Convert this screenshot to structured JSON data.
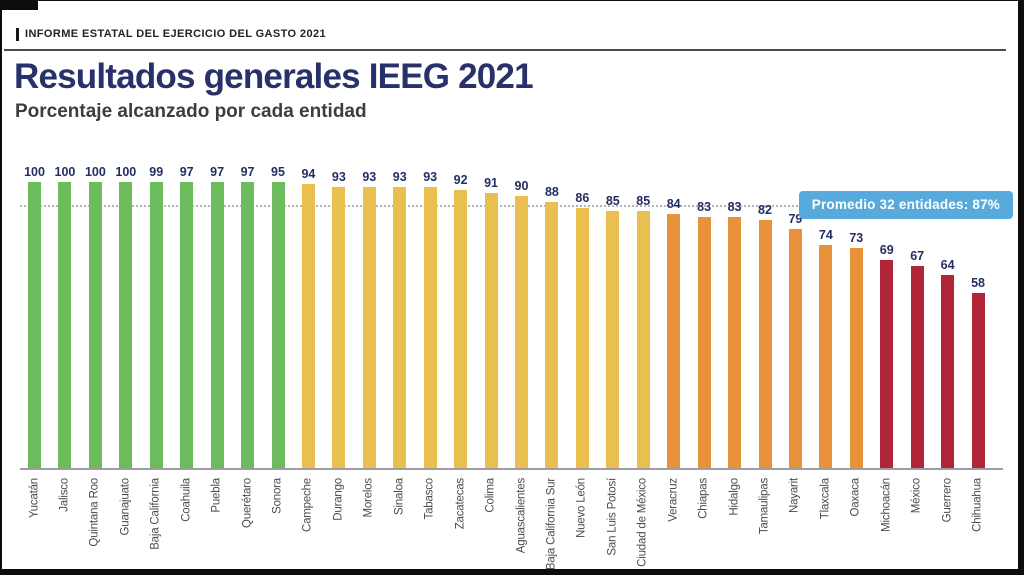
{
  "header": {
    "eyebrow": "INFORME ESTATAL DEL EJERCICIO DEL GASTO 2021"
  },
  "chart_data": {
    "type": "bar",
    "title": "Resultados generales IEEG 2021",
    "subtitle": "Porcentaje alcanzado por cada entidad",
    "xlabel": "",
    "ylabel": "",
    "ylim": [
      0,
      100
    ],
    "grid": false,
    "legend": "none",
    "average_line": {
      "value": 87,
      "label": "Promedio 32 entidades: 87%",
      "style": "dotted-gray"
    },
    "colors": {
      "green": "#6CBB5D",
      "yellow": "#E9C050",
      "orange": "#E8923C",
      "red": "#B02537",
      "badge_bg": "#58A9DC",
      "value_label": "#252E63",
      "title_navy": "#283169"
    },
    "categories": [
      "Yucatán",
      "Jalisco",
      "Quintana Roo",
      "Guanajuato",
      "Baja California",
      "Coahuila",
      "Puebla",
      "Querétaro",
      "Sonora",
      "Campeche",
      "Durango",
      "Morelos",
      "Sinaloa",
      "Tabasco",
      "Zacatecas",
      "Colima",
      "Aguascalientes",
      "Baja California Sur",
      "Nuevo León",
      "San Luis Potosí",
      "Ciudad de México",
      "Veracruz",
      "Chiapas",
      "Hidalgo",
      "Tamaulipas",
      "Nayarit",
      "Tlaxcala",
      "Oaxaca",
      "Michoacán",
      "México",
      "Guerrero",
      "Chihuahua"
    ],
    "values": [
      100,
      100,
      100,
      100,
      99,
      97,
      97,
      97,
      95,
      94,
      93,
      93,
      93,
      93,
      92,
      91,
      90,
      88,
      86,
      85,
      85,
      84,
      83,
      83,
      82,
      79,
      74,
      73,
      69,
      67,
      64,
      58
    ],
    "bands": [
      "green",
      "green",
      "green",
      "green",
      "green",
      "green",
      "green",
      "green",
      "green",
      "yellow",
      "yellow",
      "yellow",
      "yellow",
      "yellow",
      "yellow",
      "yellow",
      "yellow",
      "yellow",
      "yellow",
      "yellow",
      "yellow",
      "orange",
      "orange",
      "orange",
      "orange",
      "orange",
      "orange",
      "orange",
      "red",
      "red",
      "red",
      "red"
    ]
  }
}
